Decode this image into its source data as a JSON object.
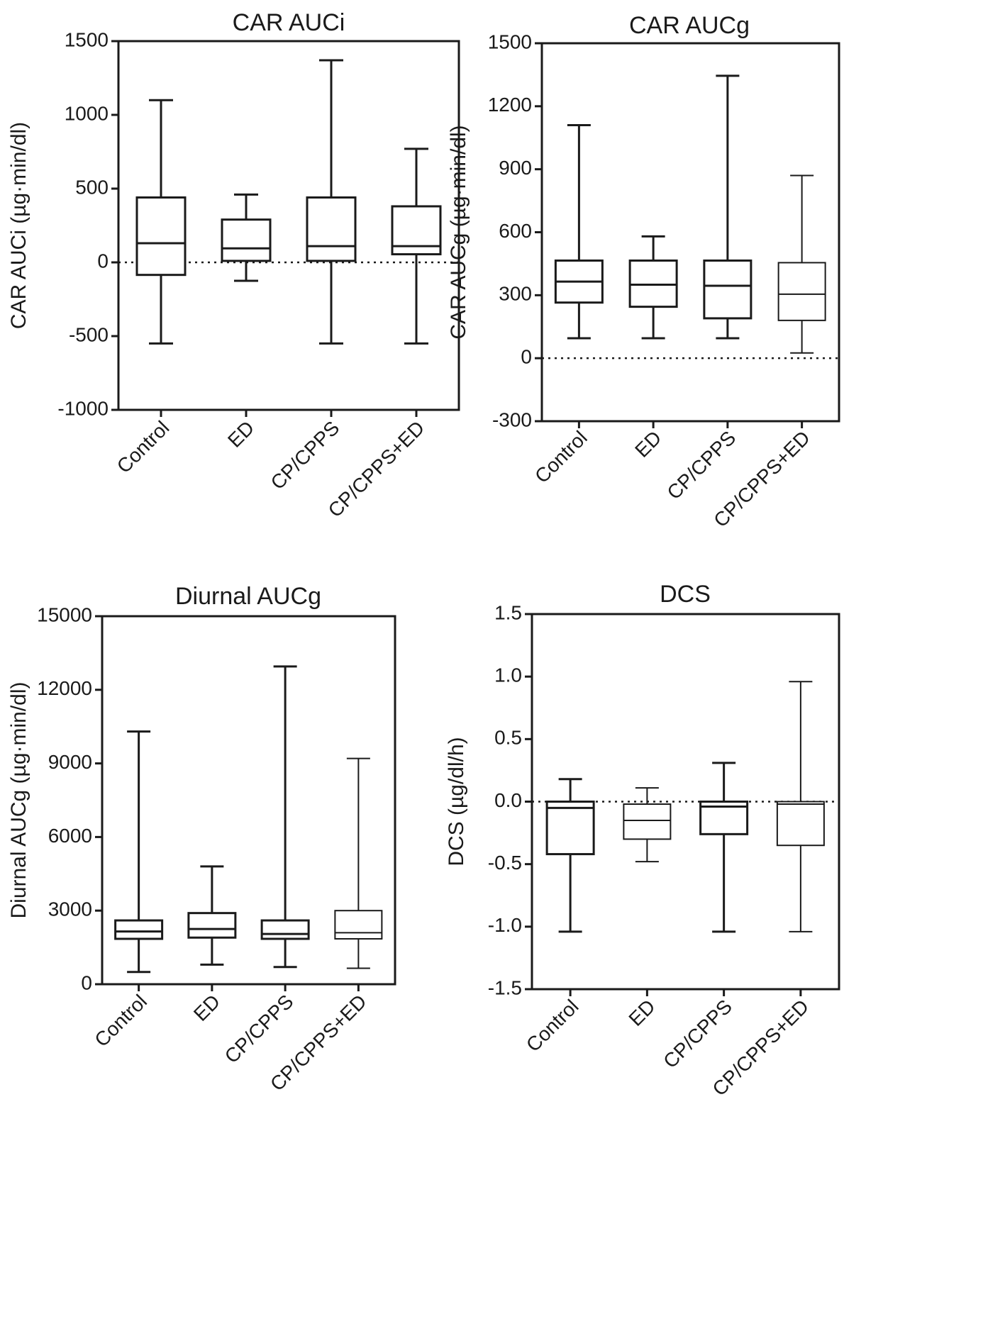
{
  "chart_data": [
    {
      "type": "box",
      "title": "CAR AUCi",
      "ylabel": "CAR AUCi (µg·min/dl)",
      "categories": [
        "Control",
        "ED",
        "CP/CPPS",
        "CP/CPPS+ED"
      ],
      "yticks": [
        -1000,
        -500,
        0,
        500,
        1000,
        1500
      ],
      "ytick_labels": [
        "-1000",
        "-500",
        "0",
        "500",
        "1000",
        "1500"
      ],
      "ylim": [
        -1000,
        1500
      ],
      "zero_line": true,
      "boxes": [
        {
          "min": -550,
          "q1": -85,
          "median": 130,
          "q3": 440,
          "max": 1100
        },
        {
          "min": -125,
          "q1": 10,
          "median": 95,
          "q3": 290,
          "max": 460
        },
        {
          "min": -550,
          "q1": 10,
          "median": 110,
          "q3": 440,
          "max": 1370
        },
        {
          "min": -550,
          "q1": 55,
          "median": 110,
          "q3": 380,
          "max": 770
        }
      ]
    },
    {
      "type": "box",
      "title": "CAR AUCg",
      "ylabel": "CAR AUCg (µg·min/dl)",
      "categories": [
        "Control",
        "ED",
        "CP/CPPS",
        "CP/CPPS+ED"
      ],
      "yticks": [
        -300,
        0,
        300,
        600,
        900,
        1200,
        1500
      ],
      "ytick_labels": [
        "-300",
        "0",
        "300",
        "600",
        "900",
        "1200",
        "1500"
      ],
      "ylim": [
        -300,
        1500
      ],
      "zero_line": true,
      "boxes": [
        {
          "min": 95,
          "q1": 265,
          "median": 365,
          "q3": 465,
          "max": 1110
        },
        {
          "min": 95,
          "q1": 245,
          "median": 350,
          "q3": 465,
          "max": 580
        },
        {
          "min": 95,
          "q1": 190,
          "median": 345,
          "q3": 465,
          "max": 1345
        },
        {
          "min": 25,
          "q1": 180,
          "median": 305,
          "q3": 455,
          "max": 870
        }
      ]
    },
    {
      "type": "box",
      "title": "Diurnal AUCg",
      "ylabel": "Diurnal AUCg (µg·min/dl)",
      "categories": [
        "Control",
        "ED",
        "CP/CPPS",
        "CP/CPPS+ED"
      ],
      "yticks": [
        0,
        3000,
        6000,
        9000,
        12000,
        15000
      ],
      "ytick_labels": [
        "0",
        "3000",
        "6000",
        "9000",
        "12000",
        "15000"
      ],
      "ylim": [
        0,
        15000
      ],
      "zero_line": false,
      "boxes": [
        {
          "min": 500,
          "q1": 1850,
          "median": 2150,
          "q3": 2600,
          "max": 10300
        },
        {
          "min": 800,
          "q1": 1900,
          "median": 2250,
          "q3": 2900,
          "max": 4800
        },
        {
          "min": 700,
          "q1": 1850,
          "median": 2050,
          "q3": 2600,
          "max": 12950
        },
        {
          "min": 650,
          "q1": 1850,
          "median": 2100,
          "q3": 3000,
          "max": 9200
        }
      ]
    },
    {
      "type": "box",
      "title": "DCS",
      "ylabel": "DCS (µg/dl/h)",
      "categories": [
        "Control",
        "ED",
        "CP/CPPS",
        "CP/CPPS+ED"
      ],
      "yticks": [
        -1.5,
        -1.0,
        -0.5,
        0.0,
        0.5,
        1.0,
        1.5
      ],
      "ytick_labels": [
        "-1.5",
        "-1.0",
        "-0.5",
        "0.0",
        "0.5",
        "1.0",
        "1.5"
      ],
      "ylim": [
        -1.5,
        1.5
      ],
      "zero_line": true,
      "boxes": [
        {
          "min": -1.04,
          "q1": -0.42,
          "median": -0.05,
          "q3": 0.0,
          "max": 0.18
        },
        {
          "min": -0.48,
          "q1": -0.3,
          "median": -0.15,
          "q3": -0.02,
          "max": 0.11
        },
        {
          "min": -1.04,
          "q1": -0.26,
          "median": -0.04,
          "q3": 0.0,
          "max": 0.31
        },
        {
          "min": -1.04,
          "q1": -0.35,
          "median": -0.02,
          "q3": 0.0,
          "max": 0.96
        }
      ]
    }
  ]
}
